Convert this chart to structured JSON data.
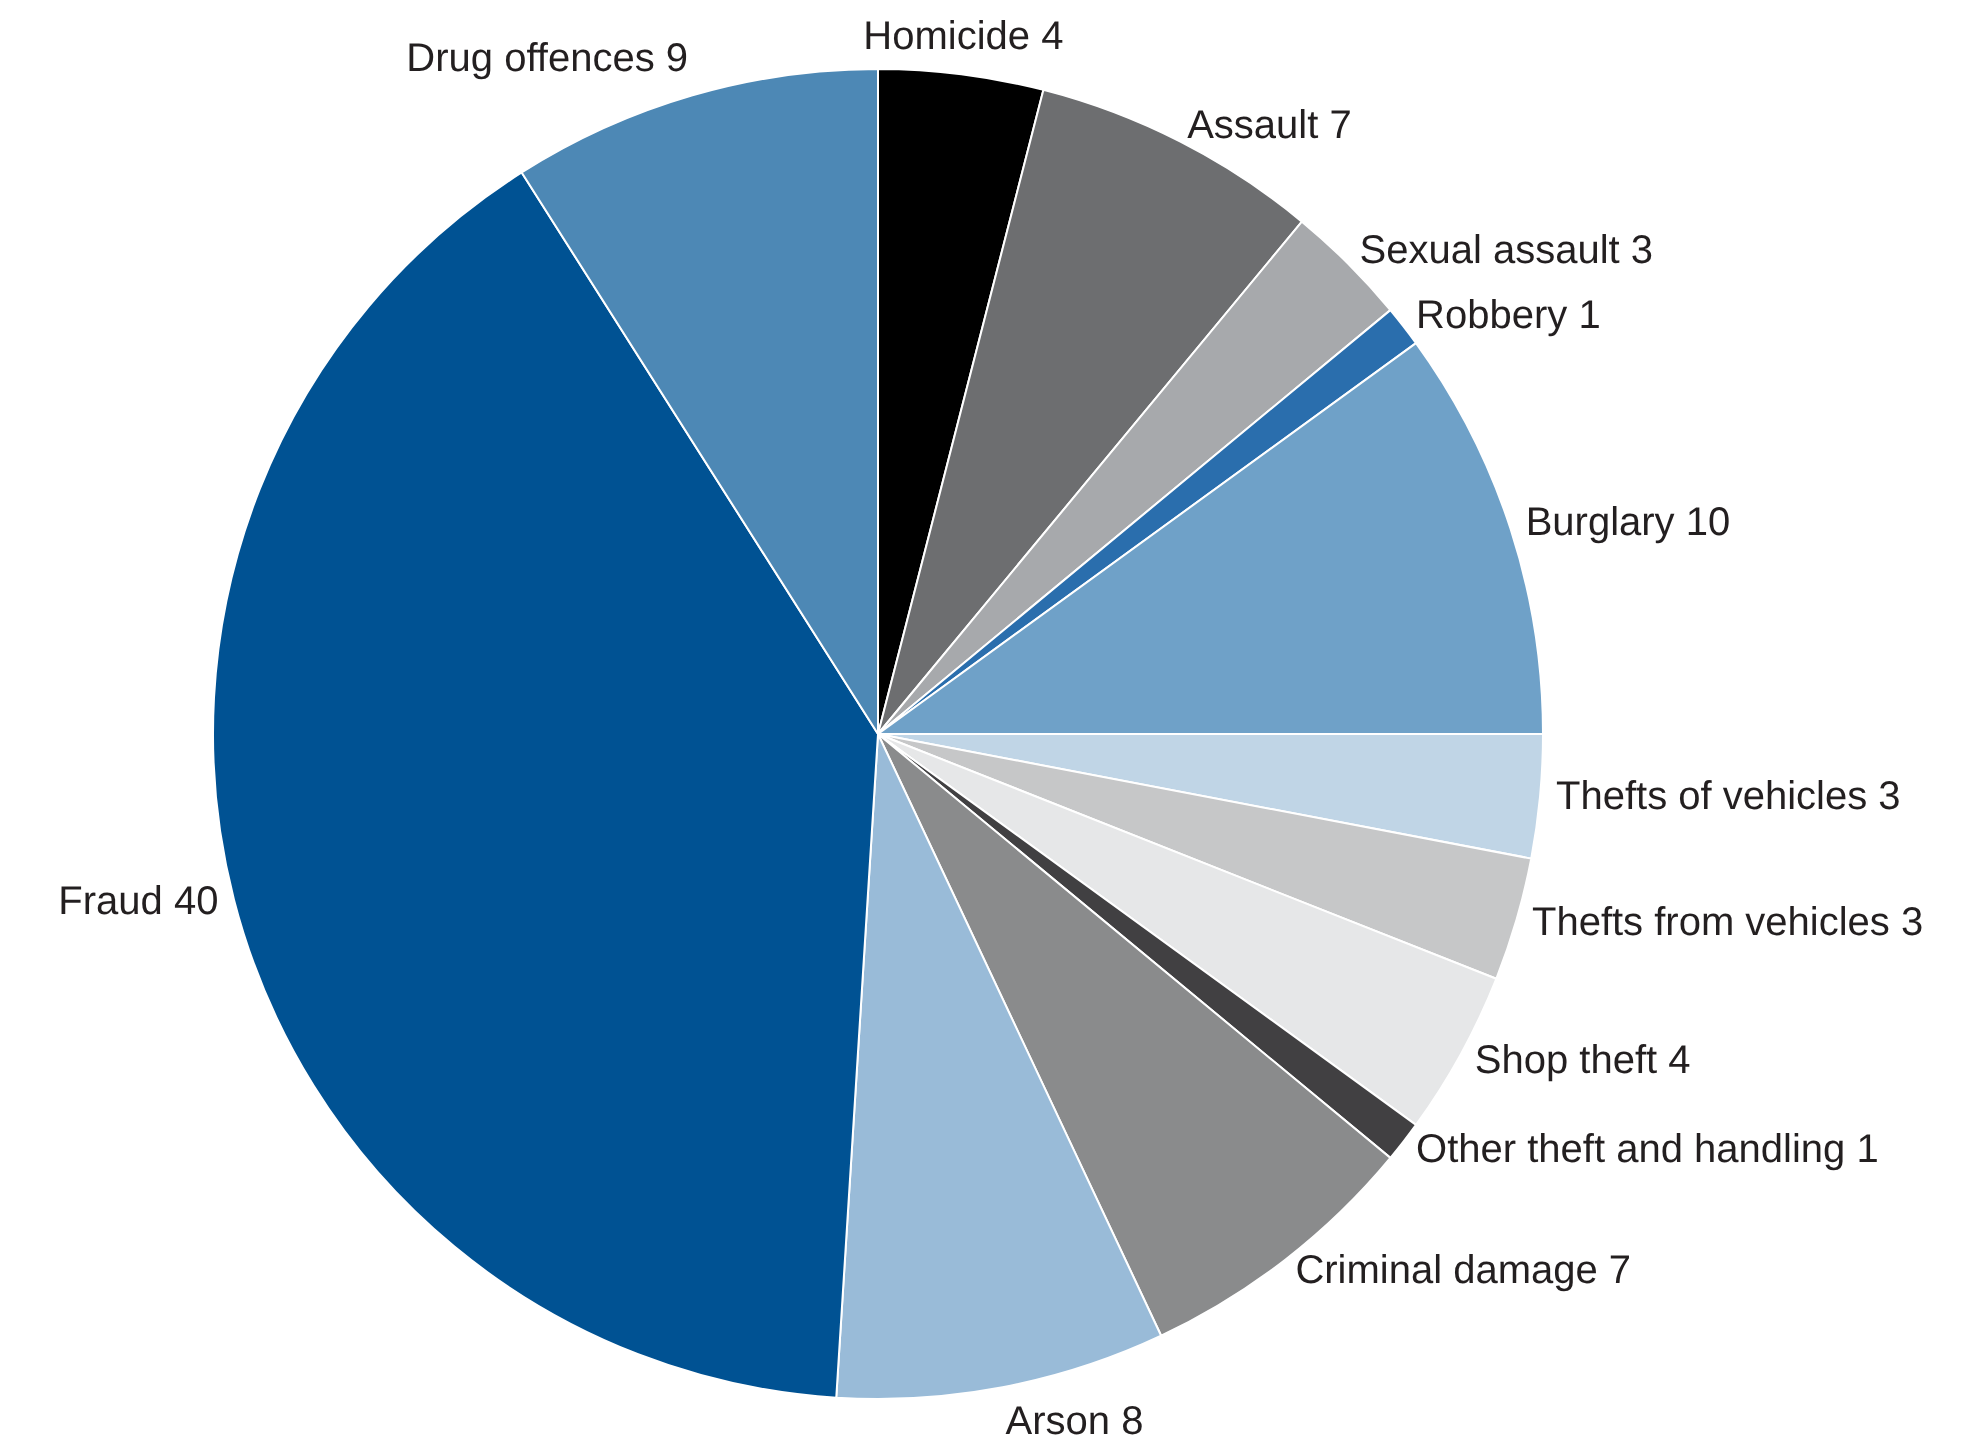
{
  "chart_data": {
    "type": "pie",
    "categories": [
      "Homicide",
      "Assault",
      "Sexual assault",
      "Robbery",
      "Burglary",
      "Thefts of vehicles",
      "Thefts from vehicles",
      "Shop theft",
      "Other theft and handling",
      "Criminal damage",
      "Arson",
      "Fraud",
      "Drug offences"
    ],
    "values": [
      4,
      7,
      3,
      1,
      10,
      3,
      3,
      4,
      1,
      7,
      8,
      40,
      9
    ],
    "colors": [
      "#000000",
      "#6d6e70",
      "#a7a9ac",
      "#2a6ead",
      "#6fa1c8",
      "#c0d5e6",
      "#c6c7c8",
      "#e6e7e8",
      "#414042",
      "#8a8b8c",
      "#99bbd8",
      "#005293",
      "#4d88b5"
    ],
    "data_labels": true,
    "legend": false
  }
}
